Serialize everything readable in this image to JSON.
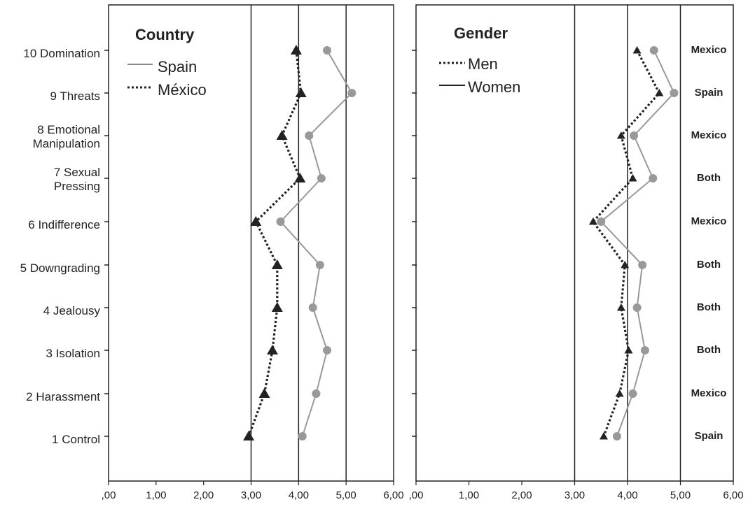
{
  "chart_data": [
    {
      "type": "line",
      "title": "Country",
      "orientation": "horizontal-values",
      "categories": [
        "10 Domination",
        "9 Threats",
        "8 Emotional Manipulation",
        "7 Sexual Pressing",
        "6 Indifference",
        "5 Downgrading",
        "4 Jealousy",
        "3 Isolation",
        "2 Harassment",
        "1 Control"
      ],
      "category_lines": [
        [
          "10 Domination"
        ],
        [
          "9 Threats"
        ],
        [
          "8 Emotional",
          "Manipulation"
        ],
        [
          "7 Sexual",
          "Pressing"
        ],
        [
          "6 Indifference"
        ],
        [
          "5 Downgrading"
        ],
        [
          "4 Jealousy"
        ],
        [
          "3 Isolation"
        ],
        [
          "2 Harassment"
        ],
        [
          "1 Control"
        ]
      ],
      "xlim": [
        0,
        6
      ],
      "xticks": [
        ",00",
        "1,00",
        "2,00",
        "3,00",
        "4,00",
        "5,00",
        "6,00"
      ],
      "reference_lines": [
        3,
        4,
        5
      ],
      "series": [
        {
          "name": "Spain",
          "style": "solid",
          "marker": "circle",
          "color": "#999999",
          "values": [
            4.6,
            5.12,
            4.22,
            4.48,
            3.62,
            4.45,
            4.3,
            4.6,
            4.37,
            4.08
          ]
        },
        {
          "name": "México",
          "style": "dotted",
          "marker": "triangle",
          "color": "#222222",
          "values": [
            3.95,
            4.05,
            3.65,
            4.03,
            3.1,
            3.55,
            3.55,
            3.45,
            3.28,
            2.95
          ]
        }
      ],
      "legend": "top-left"
    },
    {
      "type": "line",
      "title": "Gender",
      "orientation": "horizontal-values",
      "categories": [
        "10 Domination",
        "9 Threats",
        "8 Emotional Manipulation",
        "7 Sexual Pressing",
        "6 Indifference",
        "5 Downgrading",
        "4 Jealousy",
        "3 Isolation",
        "2 Harassment",
        "1 Control"
      ],
      "xlim": [
        0,
        6
      ],
      "xticks": [
        ",00",
        "1,00",
        "2,00",
        "3,00",
        "4,00",
        "5,00",
        "6,00"
      ],
      "reference_lines": [
        3,
        4,
        5
      ],
      "series": [
        {
          "name": "Men",
          "style": "dotted",
          "marker": "triangle",
          "color": "#222222",
          "values": [
            4.18,
            4.6,
            3.88,
            4.1,
            3.35,
            3.95,
            3.88,
            4.02,
            3.85,
            3.55
          ]
        },
        {
          "name": "Women",
          "style": "solid",
          "marker": "circle",
          "color": "#999999",
          "values": [
            4.5,
            4.88,
            4.12,
            4.48,
            3.5,
            4.28,
            4.18,
            4.33,
            4.1,
            3.8
          ]
        }
      ],
      "group_labels": [
        "Mexico",
        "Spain",
        "Mexico",
        "Both",
        "Mexico",
        "Both",
        "Both",
        "Both",
        "Mexico",
        "Spain"
      ],
      "legend": "top-left"
    }
  ]
}
